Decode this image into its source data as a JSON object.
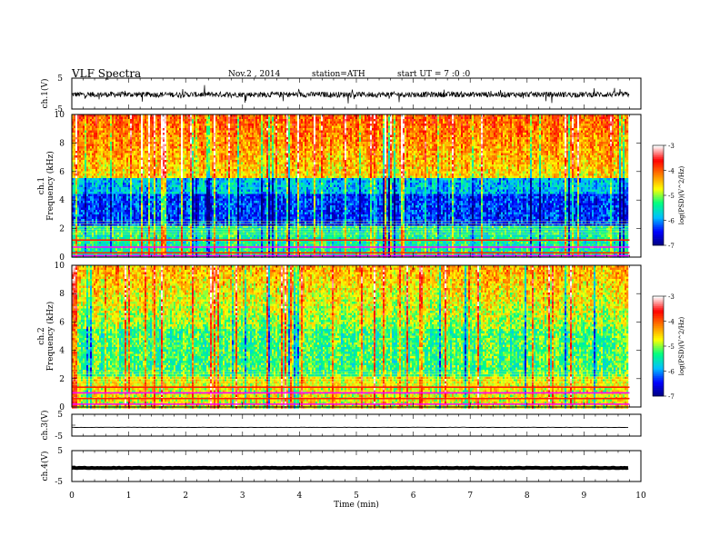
{
  "header": {
    "title": "VLF Spectra",
    "date": "Nov.2 , 2014",
    "station": "station=ATH",
    "start_ut": "start UT = 7 :0 :0"
  },
  "chart_data": [
    {
      "type": "line",
      "panel": "ch1-waveform",
      "ylabel": "ch.1(V)",
      "ylim": [
        -5,
        5
      ],
      "y_ticks": [
        "5",
        "-5"
      ],
      "xlim": [
        0,
        10
      ],
      "data_extent_min": 9.8,
      "description_level": "noisy waveform around -0.3 V with spikes to ±2 V",
      "trace_color": "#000000"
    },
    {
      "type": "heatmap",
      "panel": "ch1-spectrogram",
      "ylabel_channel": "ch.1",
      "ylabel": "Frequency (kHz)",
      "ylim": [
        0,
        10
      ],
      "y_ticks": [
        "0",
        "2",
        "4",
        "6",
        "8",
        "10"
      ],
      "xlim": [
        0,
        10
      ],
      "data_extent_min": 9.8,
      "colorbar": {
        "label": "log(PSD)(V^2/Hz)",
        "range": [
          -7,
          -3
        ],
        "ticks": [
          "-3",
          "-4",
          "-5",
          "-6",
          "-7"
        ],
        "colormap": [
          "#00007a",
          "#0000ff",
          "#00c0ff",
          "#00ff80",
          "#ffff00",
          "#ff8000",
          "#ff0000",
          "#ffffff"
        ]
      },
      "upper_band_level": -4.6,
      "lower_band_level": -6.3,
      "strong_lines_khz": [
        0.1,
        0.3,
        0.7,
        1.2
      ]
    },
    {
      "type": "heatmap",
      "panel": "ch2-spectrogram",
      "ylabel_channel": "ch.2",
      "ylabel": "Frequency (kHz)",
      "ylim": [
        0,
        10
      ],
      "y_ticks": [
        "0",
        "2",
        "4",
        "6",
        "8",
        "10"
      ],
      "xlim": [
        0,
        10
      ],
      "data_extent_min": 9.8,
      "colorbar": {
        "label": "log(PSD)(V^2/Hz)",
        "range": [
          -7,
          -3
        ],
        "ticks": [
          "-3",
          "-4",
          "-5",
          "-6",
          "-7"
        ],
        "colormap": [
          "#00007a",
          "#0000ff",
          "#00c0ff",
          "#00ff80",
          "#ffff00",
          "#ff8000",
          "#ff0000",
          "#ffffff"
        ]
      },
      "upper_band_level": -5.0,
      "lower_band_level": -5.6,
      "strong_lines_khz": [
        0.2,
        0.6,
        1.0,
        1.4
      ]
    },
    {
      "type": "line",
      "panel": "ch3-waveform",
      "ylabel": "ch.3(V)",
      "ylim": [
        -5,
        5
      ],
      "y_ticks": [
        "5",
        "-5"
      ],
      "xlim": [
        0,
        10
      ],
      "data_extent_min": 9.8,
      "level": -1.0,
      "trace_color": "#000000"
    },
    {
      "type": "line",
      "panel": "ch4-waveform",
      "ylabel": "ch.4(V)",
      "ylim": [
        -5,
        5
      ],
      "y_ticks": [
        "5",
        "-5"
      ],
      "xlim": [
        0,
        10
      ],
      "data_extent_min": 9.8,
      "level": -0.6,
      "trace_color": "#000000"
    }
  ],
  "x_axis": {
    "label": "Time (min)",
    "ticks": [
      "0",
      "1",
      "2",
      "3",
      "4",
      "5",
      "6",
      "7",
      "8",
      "9",
      "10"
    ]
  }
}
